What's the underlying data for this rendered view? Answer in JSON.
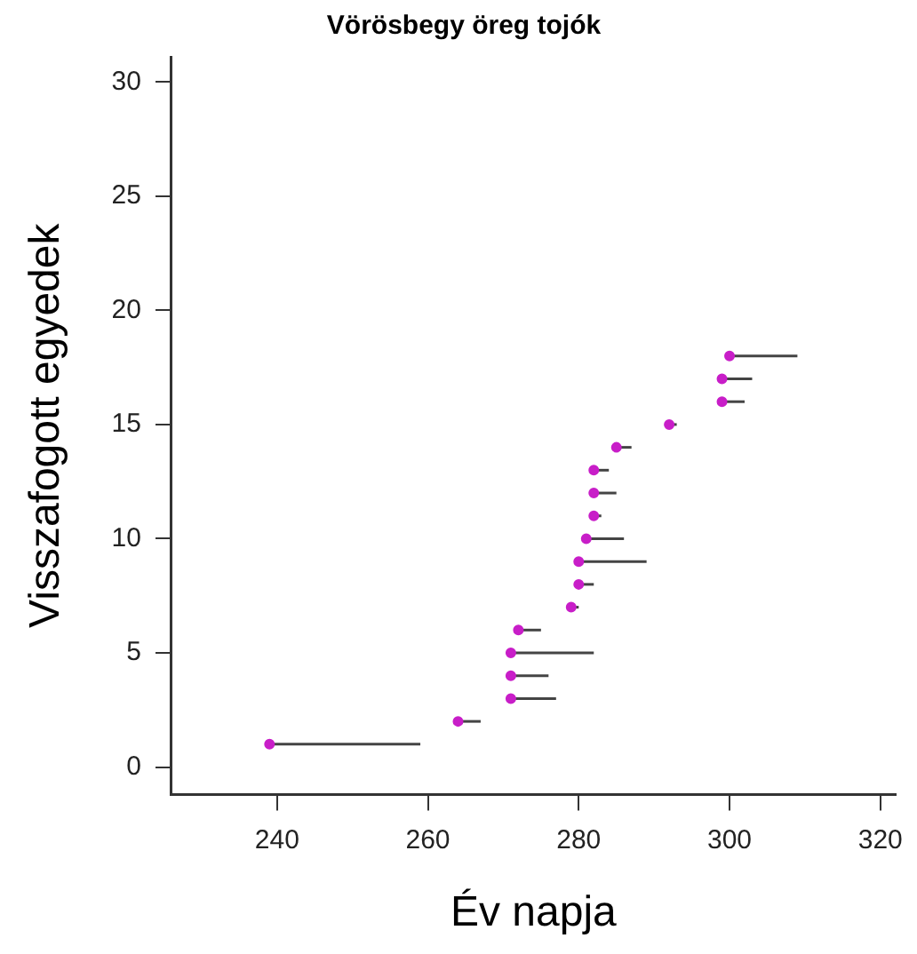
{
  "chart_data": {
    "type": "scatter",
    "title": "Vörösbegy öreg tojók",
    "xlabel": "Év napja",
    "ylabel": "Visszafogott egyedek",
    "series": [
      {
        "color": "#c81ec8",
        "x": [
          239,
          264,
          271,
          271,
          271,
          272,
          279,
          280,
          280,
          281,
          282,
          282,
          282,
          285,
          292,
          299,
          299,
          300
        ],
        "values": [
          1,
          2,
          3,
          4,
          5,
          6,
          7,
          8,
          9,
          10,
          11,
          12,
          13,
          14,
          15,
          16,
          17,
          18
        ],
        "xerrors": [
          [
            239,
            259
          ],
          [
            264,
            267
          ],
          [
            271,
            277
          ],
          [
            271,
            276
          ],
          [
            271,
            282
          ],
          [
            272,
            275
          ],
          [
            279,
            280
          ],
          [
            280,
            282
          ],
          [
            280,
            289
          ],
          [
            281,
            286
          ],
          [
            282,
            283
          ],
          [
            282,
            285
          ],
          [
            282,
            284
          ],
          [
            285,
            287
          ],
          [
            292,
            293
          ],
          [
            299,
            302
          ],
          [
            299,
            303
          ],
          [
            300,
            309
          ]
        ]
      }
    ],
    "xlim": [
      226,
      322
    ],
    "xticks": [
      240,
      260,
      280,
      300,
      320
    ],
    "ylim": [
      -1.2,
      31.1
    ],
    "yticks": [
      0,
      5,
      10,
      15,
      20,
      25,
      30
    ],
    "grid": false,
    "legend": false,
    "marker": "circle"
  }
}
